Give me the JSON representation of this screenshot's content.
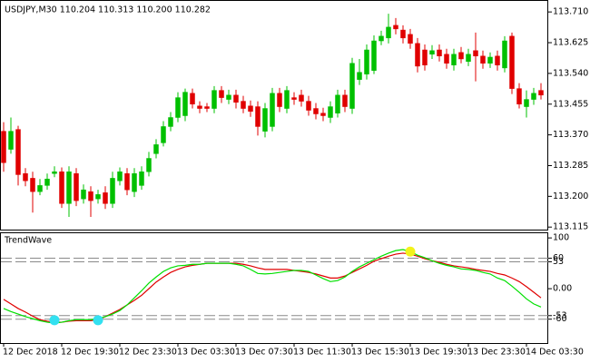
{
  "chart_data": [
    {
      "type": "candlestick",
      "title": "USDJPY,M30  110.204 110.313 110.200 110.282",
      "open": [
        113.38,
        113.33,
        113.385,
        113.263,
        113.25,
        113.213,
        113.23,
        113.263,
        113.268,
        113.18,
        113.263,
        113.193,
        113.213,
        113.193,
        113.21,
        113.18,
        113.243,
        113.263,
        113.213,
        113.23,
        113.268,
        113.318,
        113.348,
        113.393,
        113.418,
        113.423,
        113.485,
        113.45,
        113.448,
        113.443,
        113.493,
        113.468,
        113.48,
        113.463,
        113.45,
        113.448,
        113.38,
        113.393,
        113.485,
        113.443,
        113.473,
        113.48,
        113.463,
        113.443,
        113.43,
        113.418,
        113.43,
        113.48,
        113.443,
        113.523,
        113.538,
        113.548,
        113.63,
        113.638,
        113.673,
        113.66,
        113.648,
        113.623,
        113.605,
        113.593,
        113.605,
        113.593,
        113.563,
        113.598,
        113.573,
        113.603,
        113.588,
        113.568,
        113.588,
        113.555,
        113.643,
        113.498,
        113.448,
        113.468,
        113.493
      ],
      "high": [
        113.405,
        113.418,
        113.395,
        113.278,
        113.268,
        113.248,
        113.263,
        113.283,
        113.28,
        113.283,
        113.278,
        113.233,
        113.228,
        113.218,
        113.228,
        113.268,
        113.28,
        113.278,
        113.278,
        113.283,
        113.323,
        113.358,
        113.408,
        113.433,
        113.488,
        113.498,
        113.498,
        113.463,
        113.458,
        113.505,
        113.505,
        113.495,
        113.495,
        113.478,
        113.465,
        113.463,
        113.458,
        113.5,
        113.5,
        113.505,
        113.488,
        113.495,
        113.478,
        113.458,
        113.445,
        113.463,
        113.495,
        113.495,
        113.583,
        113.58,
        113.62,
        113.645,
        113.658,
        113.705,
        113.693,
        113.673,
        113.663,
        113.638,
        113.62,
        113.618,
        113.62,
        113.608,
        113.608,
        113.613,
        113.608,
        113.653,
        113.603,
        113.598,
        113.603,
        113.643,
        113.653,
        113.513,
        113.493,
        113.5,
        113.513
      ],
      "low": [
        113.268,
        113.318,
        113.23,
        113.228,
        113.155,
        113.203,
        113.218,
        113.253,
        113.168,
        113.143,
        113.173,
        113.18,
        113.143,
        113.18,
        113.165,
        113.168,
        113.23,
        113.203,
        113.198,
        113.218,
        113.255,
        113.305,
        113.338,
        113.38,
        113.405,
        113.408,
        113.443,
        113.43,
        113.433,
        113.43,
        113.458,
        113.455,
        113.443,
        113.43,
        113.42,
        113.368,
        113.363,
        113.38,
        113.433,
        113.43,
        113.453,
        113.448,
        113.423,
        113.413,
        113.408,
        113.403,
        113.418,
        113.433,
        113.428,
        113.508,
        113.523,
        113.538,
        113.618,
        113.623,
        113.648,
        113.623,
        113.608,
        113.543,
        113.548,
        113.58,
        113.573,
        113.553,
        113.548,
        113.568,
        113.56,
        113.518,
        113.553,
        113.555,
        113.548,
        113.543,
        113.483,
        113.443,
        113.418,
        113.453,
        113.468
      ],
      "close": [
        113.293,
        113.38,
        113.26,
        113.243,
        113.213,
        113.23,
        113.248,
        113.268,
        113.18,
        113.268,
        113.188,
        113.218,
        113.188,
        113.205,
        113.18,
        113.25,
        113.268,
        113.218,
        113.263,
        113.268,
        113.305,
        113.343,
        113.393,
        113.418,
        113.473,
        113.488,
        113.455,
        113.443,
        113.443,
        113.493,
        113.473,
        113.48,
        113.46,
        113.443,
        113.435,
        113.393,
        113.443,
        113.485,
        113.448,
        113.493,
        113.468,
        113.463,
        113.438,
        113.428,
        113.423,
        113.448,
        113.48,
        113.448,
        113.568,
        113.543,
        113.605,
        113.63,
        113.643,
        113.668,
        113.663,
        113.638,
        113.623,
        113.56,
        113.563,
        113.603,
        113.588,
        113.568,
        113.593,
        113.58,
        113.593,
        113.588,
        113.568,
        113.585,
        113.563,
        113.63,
        113.498,
        113.455,
        113.468,
        113.485,
        113.48
      ],
      "up_color": "#00c000",
      "down_color": "#e00000",
      "ylim": [
        113.108,
        113.738
      ],
      "yticks": [
        {
          "value": 113.71,
          "label": "113.710"
        },
        113.625,
        {
          "value": 113.54,
          "label": "113.540"
        },
        113.455,
        {
          "value": 113.37,
          "label": "113.370"
        },
        113.285,
        {
          "value": 113.2,
          "label": "113.200"
        },
        113.115
      ]
    },
    {
      "type": "line",
      "title": "TrendWave",
      "categories": [
        "12 Dec 2018",
        null,
        null,
        null,
        null,
        null,
        null,
        null,
        "12 Dec 19:30",
        null,
        null,
        null,
        null,
        null,
        null,
        null,
        "12 Dec 23:30",
        null,
        null,
        null,
        null,
        null,
        null,
        null,
        "13 Dec 03:30",
        null,
        null,
        null,
        null,
        null,
        null,
        null,
        "13 Dec 07:30",
        null,
        null,
        null,
        null,
        null,
        null,
        null,
        "13 Dec 11:30",
        null,
        null,
        null,
        null,
        null,
        null,
        null,
        "13 Dec 15:30",
        null,
        null,
        null,
        null,
        null,
        null,
        null,
        "13 Dec 19:30",
        null,
        null,
        null,
        null,
        null,
        null,
        null,
        "13 Dec 23:30",
        null,
        null,
        null,
        null,
        null,
        null,
        null,
        "14 Dec 03:30",
        null,
        null
      ],
      "series": [
        {
          "color": "#e00000",
          "values": [
            -21,
            -30,
            -39,
            -46,
            -54,
            -61,
            -64,
            -66,
            -66,
            -64,
            -63,
            -63,
            -63,
            -61,
            -55,
            -48,
            -41,
            -32,
            -23,
            -13,
            0,
            13,
            23,
            32,
            38,
            43,
            46,
            48,
            50,
            50,
            50,
            50,
            50,
            48,
            45,
            41,
            38,
            38,
            38,
            38,
            36,
            34,
            32,
            29,
            25,
            21,
            21,
            25,
            32,
            39,
            46,
            54,
            59,
            64,
            68,
            70,
            68,
            64,
            59,
            55,
            52,
            48,
            45,
            43,
            41,
            38,
            36,
            34,
            30,
            27,
            21,
            14,
            4,
            -7,
            -18
          ]
        },
        {
          "color": "#00e000",
          "values": [
            -39,
            -45,
            -50,
            -55,
            -59,
            -63,
            -66,
            -68,
            -66,
            -63,
            -61,
            -61,
            -61,
            -59,
            -55,
            -50,
            -43,
            -32,
            -18,
            -4,
            11,
            23,
            34,
            41,
            45,
            46,
            48,
            48,
            50,
            50,
            50,
            50,
            48,
            45,
            38,
            30,
            29,
            30,
            32,
            34,
            36,
            36,
            34,
            27,
            20,
            14,
            16,
            23,
            34,
            43,
            50,
            57,
            64,
            70,
            75,
            77,
            73,
            66,
            61,
            55,
            50,
            46,
            43,
            39,
            38,
            36,
            32,
            29,
            21,
            16,
            5,
            -7,
            -20,
            -30,
            -36
          ]
        },
        {
          "color": "#33e0f0",
          "marker": "dot",
          "values": [
            null,
            null,
            null,
            null,
            null,
            null,
            null,
            -62,
            null,
            null,
            null,
            null,
            null,
            -62,
            null,
            null,
            null,
            null,
            null,
            null,
            null,
            null,
            null,
            null,
            null,
            null,
            null,
            null,
            null,
            null,
            null,
            null,
            null,
            null,
            null,
            null,
            null,
            null,
            null,
            null,
            null,
            null,
            null,
            null,
            null,
            null,
            null,
            null,
            null,
            null,
            null,
            null,
            null,
            null,
            null,
            null,
            null,
            null,
            null,
            null,
            null,
            null,
            null,
            null,
            null,
            null,
            null,
            null,
            null,
            null,
            null,
            null,
            null,
            null,
            null
          ]
        },
        {
          "color": "#f2f21a",
          "marker": "dot",
          "values": [
            null,
            null,
            null,
            null,
            null,
            null,
            null,
            null,
            null,
            null,
            null,
            null,
            null,
            null,
            null,
            null,
            null,
            null,
            null,
            null,
            null,
            null,
            null,
            null,
            null,
            null,
            null,
            null,
            null,
            null,
            null,
            null,
            null,
            null,
            null,
            null,
            null,
            null,
            null,
            null,
            null,
            null,
            null,
            null,
            null,
            null,
            null,
            null,
            null,
            null,
            null,
            null,
            null,
            null,
            null,
            null,
            73,
            null,
            null,
            null,
            null,
            null,
            null,
            null,
            null,
            null,
            null,
            null,
            null,
            null,
            null,
            null,
            null,
            null,
            null
          ]
        }
      ],
      "ylim": [
        -107,
        111
      ],
      "yticks": [
        100,
        60,
        53,
        {
          "value": 0,
          "label": "0.00"
        },
        -53,
        -60
      ],
      "levels": [
        60,
        53,
        -53,
        -60
      ]
    }
  ]
}
